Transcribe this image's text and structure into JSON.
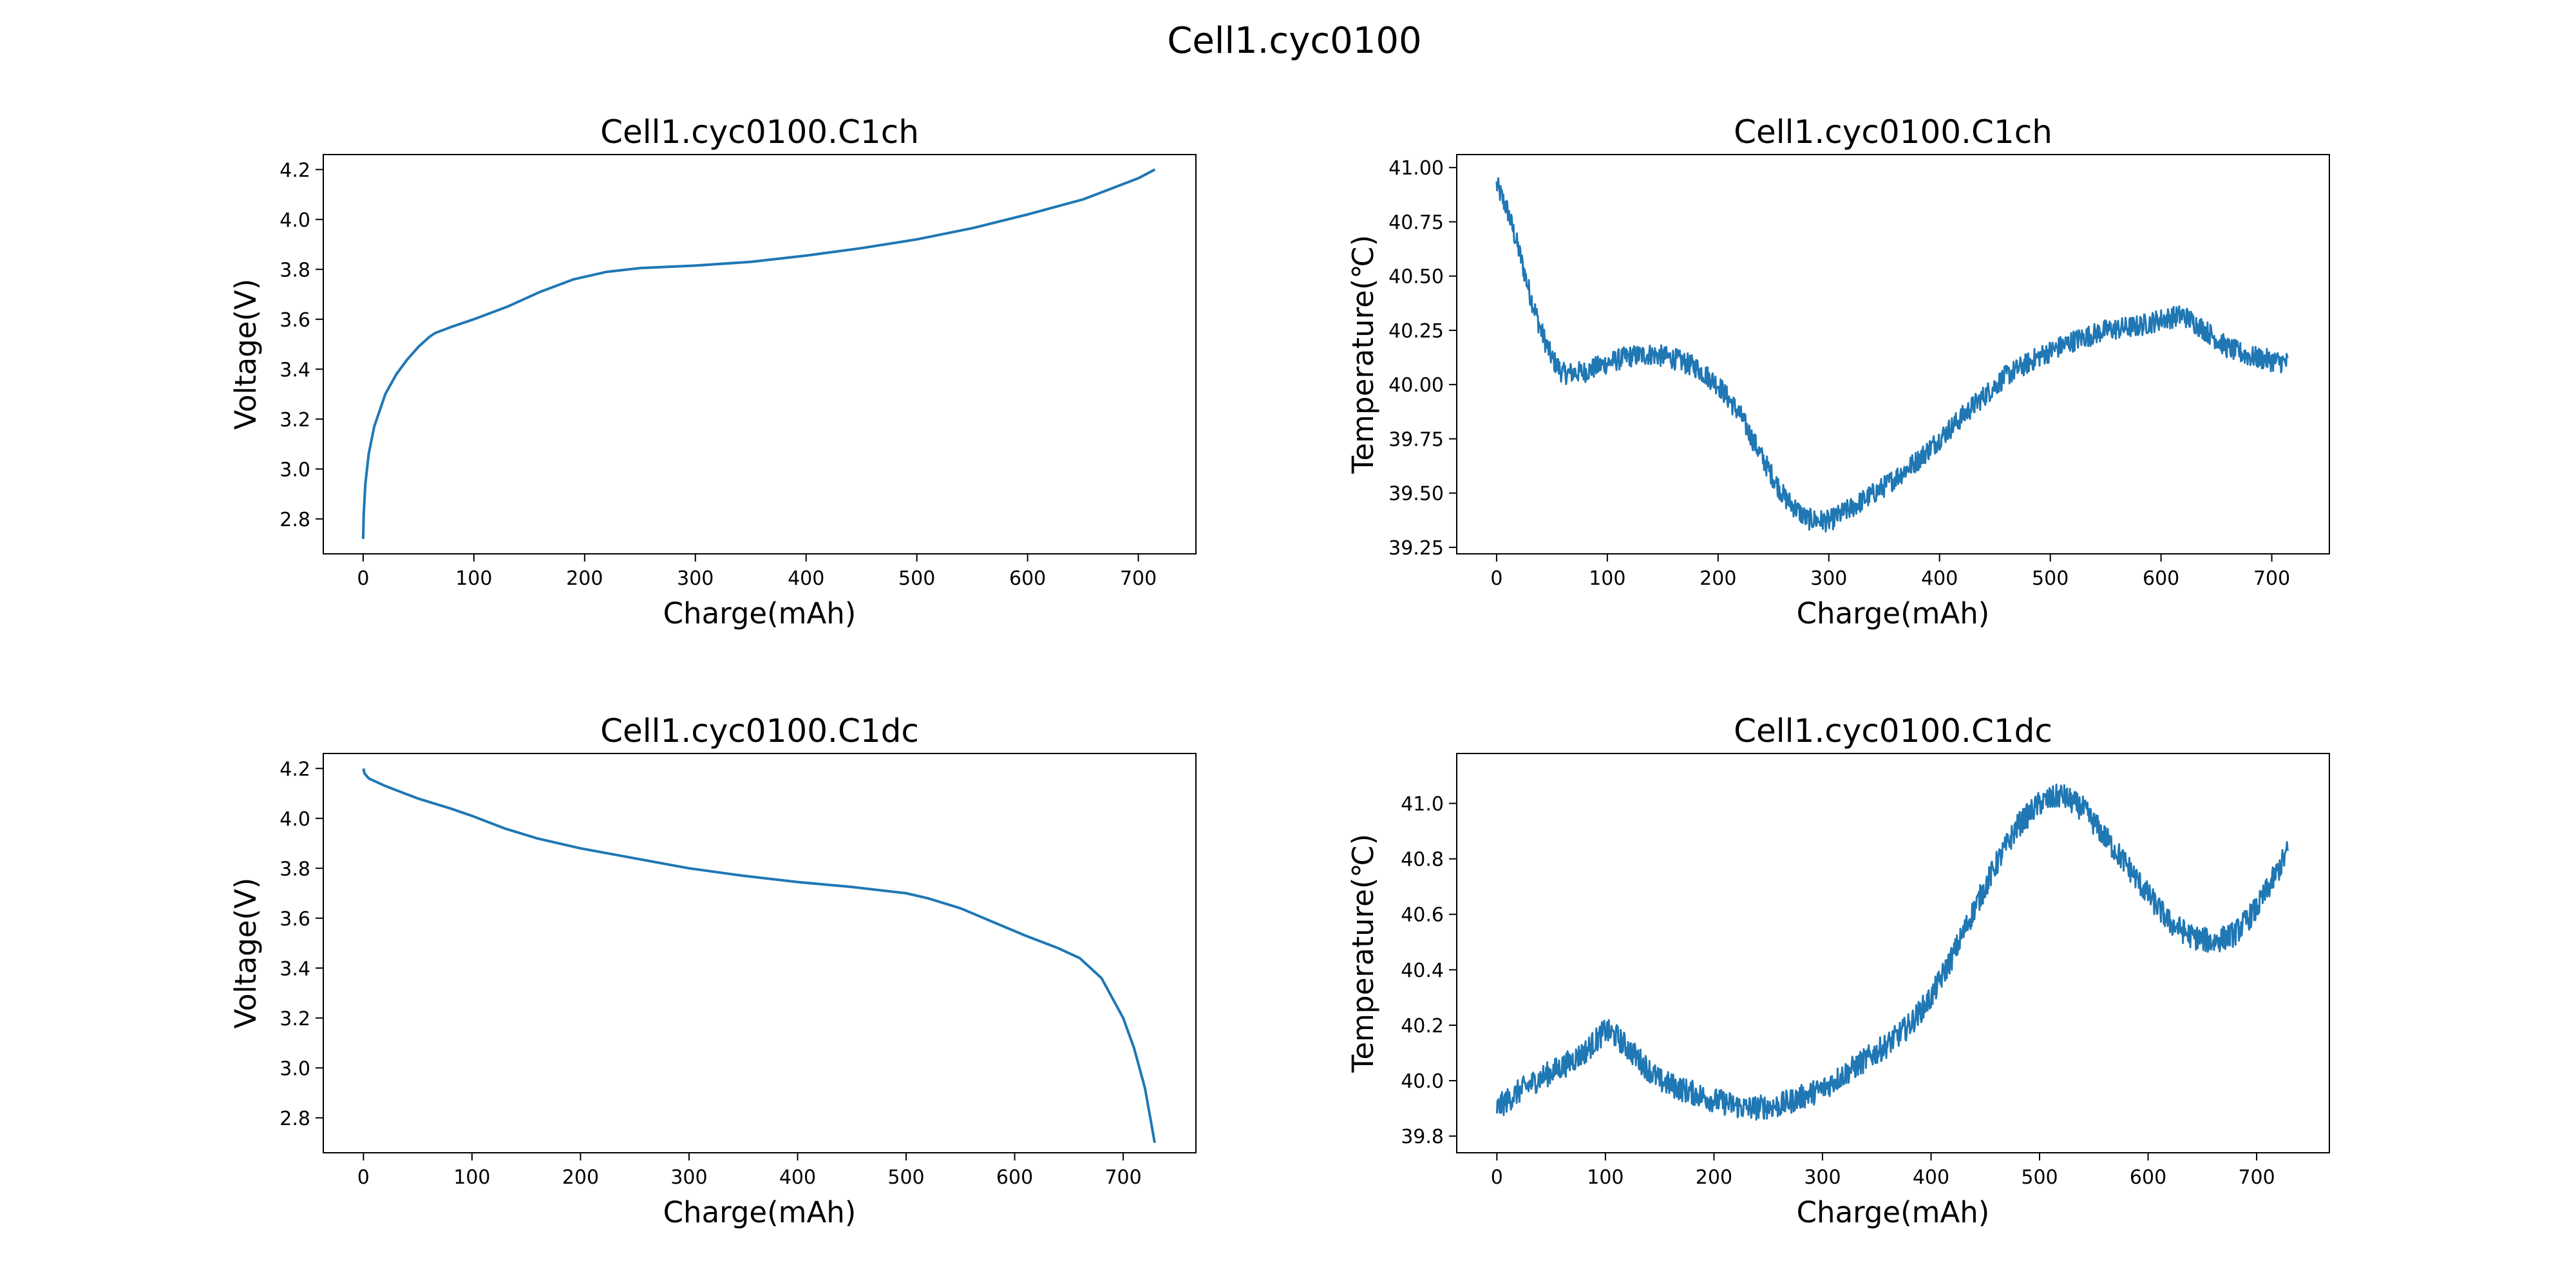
{
  "figure": {
    "suptitle": "Cell1.cyc0100",
    "line_color": "#1f77b4"
  },
  "chart_data": [
    {
      "type": "line",
      "title": "Cell1.cyc0100.C1ch",
      "xlabel": "Charge(mAh)",
      "ylabel": "Voltage(V)",
      "xlim": [
        -36,
        752
      ],
      "ylim": [
        2.66,
        4.26
      ],
      "xticks": [
        0,
        100,
        200,
        300,
        400,
        500,
        600,
        700
      ],
      "yticks": [
        2.8,
        3.0,
        3.2,
        3.4,
        3.6,
        3.8,
        4.0,
        4.2
      ],
      "ytick_labels": [
        "2.8",
        "3.0",
        "3.2",
        "3.4",
        "3.6",
        "3.8",
        "4.0",
        "4.2"
      ],
      "grid": false,
      "noisy": false,
      "series": [
        {
          "x": [
            0,
            0.5,
            2,
            5,
            10,
            20,
            30,
            40,
            50,
            60,
            65,
            80,
            100,
            130,
            160,
            190,
            220,
            250,
            300,
            350,
            400,
            450,
            500,
            550,
            600,
            650,
            700,
            715
          ],
          "y": [
            2.72,
            2.82,
            2.94,
            3.06,
            3.17,
            3.3,
            3.38,
            3.44,
            3.49,
            3.53,
            3.545,
            3.57,
            3.6,
            3.65,
            3.71,
            3.76,
            3.79,
            3.805,
            3.815,
            3.83,
            3.855,
            3.885,
            3.92,
            3.965,
            4.02,
            4.08,
            4.165,
            4.2
          ]
        }
      ]
    },
    {
      "type": "line",
      "title": "Cell1.cyc0100.C1ch",
      "xlabel": "Charge(mAh)",
      "ylabel": "Temperature(℃)",
      "xlim": [
        -36,
        752
      ],
      "ylim": [
        39.22,
        41.06
      ],
      "xticks": [
        0,
        100,
        200,
        300,
        400,
        500,
        600,
        700
      ],
      "yticks": [
        39.25,
        39.5,
        39.75,
        40.0,
        40.25,
        40.5,
        40.75,
        41.0
      ],
      "ytick_labels": [
        "39.25",
        "39.50",
        "39.75",
        "40.00",
        "40.25",
        "40.50",
        "40.75",
        "41.00"
      ],
      "grid": false,
      "noisy": true,
      "noise_amplitude": 0.05,
      "series": [
        {
          "x": [
            0,
            10,
            20,
            30,
            40,
            50,
            60,
            80,
            100,
            120,
            140,
            160,
            180,
            200,
            220,
            240,
            260,
            280,
            300,
            320,
            350,
            380,
            400,
            430,
            460,
            490,
            520,
            550,
            580,
            600,
            620,
            640,
            660,
            680,
            700,
            715
          ],
          "y": [
            40.92,
            40.8,
            40.62,
            40.42,
            40.25,
            40.12,
            40.05,
            40.06,
            40.1,
            40.13,
            40.14,
            40.12,
            40.08,
            40.0,
            39.86,
            39.66,
            39.48,
            39.38,
            39.37,
            39.43,
            39.53,
            39.65,
            39.75,
            39.9,
            40.04,
            40.13,
            40.2,
            40.25,
            40.27,
            40.3,
            40.32,
            40.25,
            40.17,
            40.13,
            40.11,
            40.1
          ]
        }
      ]
    },
    {
      "type": "line",
      "title": "Cell1.cyc0100.C1dc",
      "xlabel": "Charge(mAh)",
      "ylabel": "Voltage(V)",
      "xlim": [
        -37,
        767
      ],
      "ylim": [
        2.66,
        4.26
      ],
      "xticks": [
        0,
        100,
        200,
        300,
        400,
        500,
        600,
        700
      ],
      "yticks": [
        2.8,
        3.0,
        3.2,
        3.4,
        3.6,
        3.8,
        4.0,
        4.2
      ],
      "ytick_labels": [
        "2.8",
        "3.0",
        "3.2",
        "3.4",
        "3.6",
        "3.8",
        "4.0",
        "4.2"
      ],
      "grid": false,
      "noisy": false,
      "series": [
        {
          "x": [
            0,
            1,
            3,
            5,
            20,
            50,
            80,
            100,
            130,
            160,
            200,
            250,
            300,
            350,
            400,
            450,
            500,
            520,
            550,
            580,
            610,
            640,
            660,
            680,
            700,
            710,
            720,
            725,
            729
          ],
          "y": [
            4.2,
            4.18,
            4.17,
            4.16,
            4.13,
            4.08,
            4.04,
            4.01,
            3.96,
            3.92,
            3.88,
            3.84,
            3.8,
            3.77,
            3.745,
            3.725,
            3.7,
            3.68,
            3.64,
            3.585,
            3.53,
            3.48,
            3.44,
            3.36,
            3.2,
            3.08,
            2.92,
            2.8,
            2.7
          ]
        }
      ]
    },
    {
      "type": "line",
      "title": "Cell1.cyc0100.C1dc",
      "xlabel": "Charge(mAh)",
      "ylabel": "Temperature(℃)",
      "xlim": [
        -37,
        767
      ],
      "ylim": [
        39.74,
        41.18
      ],
      "xticks": [
        0,
        100,
        200,
        300,
        400,
        500,
        600,
        700
      ],
      "yticks": [
        39.8,
        40.0,
        40.2,
        40.4,
        40.6,
        40.8,
        41.0
      ],
      "ytick_labels": [
        "39.8",
        "40.0",
        "40.2",
        "40.4",
        "40.6",
        "40.8",
        "41.0"
      ],
      "grid": false,
      "noisy": true,
      "noise_amplitude": 0.045,
      "series": [
        {
          "x": [
            0,
            20,
            40,
            60,
            80,
            100,
            110,
            130,
            150,
            170,
            200,
            230,
            260,
            300,
            330,
            360,
            380,
            400,
            420,
            440,
            460,
            480,
            500,
            520,
            540,
            560,
            580,
            600,
            620,
            640,
            660,
            680,
            700,
            720,
            729
          ],
          "y": [
            39.9,
            39.96,
            40.01,
            40.05,
            40.1,
            40.18,
            40.16,
            40.08,
            40.0,
            39.97,
            39.93,
            39.9,
            39.91,
            39.97,
            40.05,
            40.13,
            40.2,
            40.3,
            40.45,
            40.62,
            40.78,
            40.92,
            41.0,
            41.03,
            40.98,
            40.88,
            40.78,
            40.67,
            40.57,
            40.52,
            40.5,
            40.53,
            40.62,
            40.76,
            40.83
          ]
        }
      ]
    }
  ]
}
